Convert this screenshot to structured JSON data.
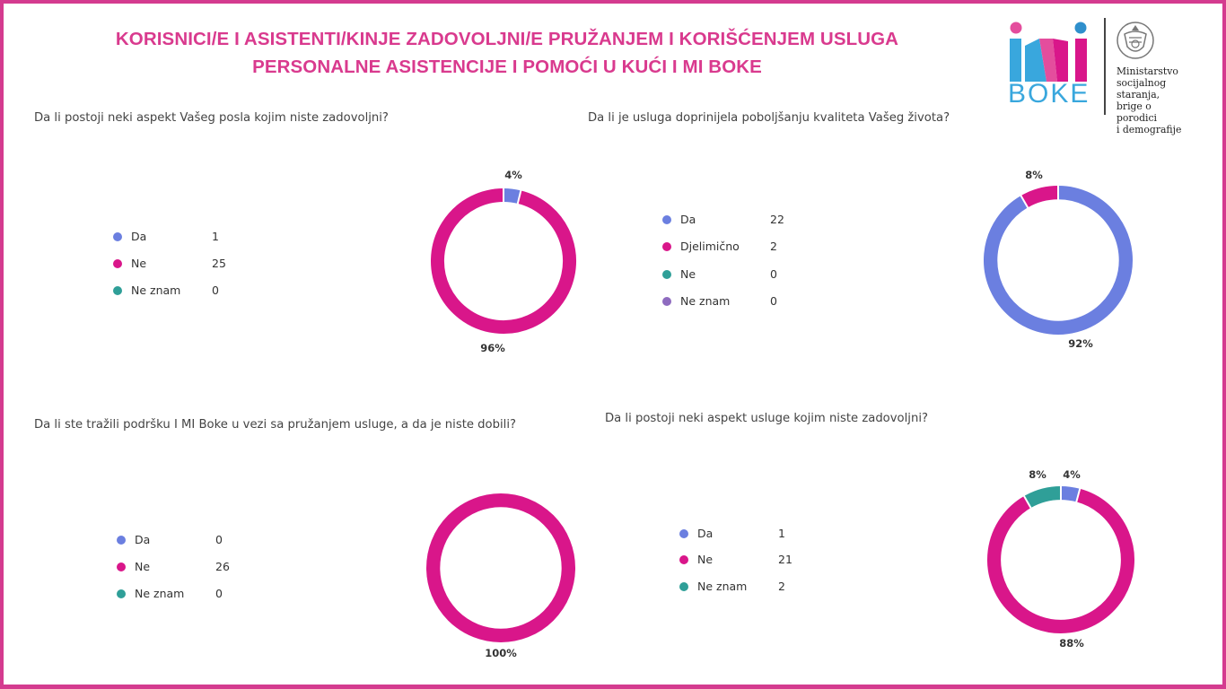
{
  "header": {
    "title_line1": "KORISNICI/E I ASISTENTI/KINJE ZADOVOLJNI/E PRUŽANJEM I KORIŠĆENJEM USLUGA",
    "title_line2": "PERSONALNE ASISTENCIJE I POMOĆI U KUĆI I MI BOKE"
  },
  "logo": {
    "brand_text": "BOKE",
    "ministry_lines": [
      "Ministarstvo",
      "socijalnog staranja,",
      "brige o porodici",
      "i demografije"
    ]
  },
  "colors": {
    "accent": "#d93a8e",
    "frame": "#d43b8f",
    "blue": "#6b7fe0",
    "pink": "#d9168a",
    "teal": "#2f9f98",
    "purple": "#8e6bbf"
  },
  "chart_data": [
    {
      "type": "pie",
      "question": "Da li postoji neki aspekt Vašeg posla kojim niste zadovoljni?",
      "legend": [
        {
          "label": "Da",
          "value": 1,
          "color": "#6b7fe0"
        },
        {
          "label": "Ne",
          "value": 25,
          "color": "#d9168a"
        },
        {
          "label": "Ne znam",
          "value": 0,
          "color": "#2f9f98"
        }
      ],
      "slice_labels": [
        "4%",
        "96%"
      ]
    },
    {
      "type": "pie",
      "question": "Da li je usluga doprinijela poboljšanju kvaliteta Vašeg života?",
      "legend": [
        {
          "label": "Da",
          "value": 22,
          "color": "#6b7fe0"
        },
        {
          "label": "Djelimično",
          "value": 2,
          "color": "#d9168a"
        },
        {
          "label": "Ne",
          "value": 0,
          "color": "#2f9f98"
        },
        {
          "label": "Ne znam",
          "value": 0,
          "color": "#8e6bbf"
        }
      ],
      "slice_labels": [
        "8%",
        "92%"
      ]
    },
    {
      "type": "pie",
      "question": "Da li ste tražili podršku I MI Boke u vezi sa pružanjem usluge, a da je niste dobili?",
      "legend": [
        {
          "label": "Da",
          "value": 0,
          "color": "#6b7fe0"
        },
        {
          "label": "Ne",
          "value": 26,
          "color": "#d9168a"
        },
        {
          "label": "Ne znam",
          "value": 0,
          "color": "#2f9f98"
        }
      ],
      "slice_labels": [
        "100%"
      ]
    },
    {
      "type": "pie",
      "question": "Da li postoji neki aspekt usluge kojim niste zadovoljni?",
      "legend": [
        {
          "label": "Da",
          "value": 1,
          "color": "#6b7fe0"
        },
        {
          "label": "Ne",
          "value": 21,
          "color": "#d9168a"
        },
        {
          "label": "Ne znam",
          "value": 2,
          "color": "#2f9f98"
        }
      ],
      "slice_labels": [
        "8%",
        "4%",
        "88%"
      ]
    }
  ]
}
